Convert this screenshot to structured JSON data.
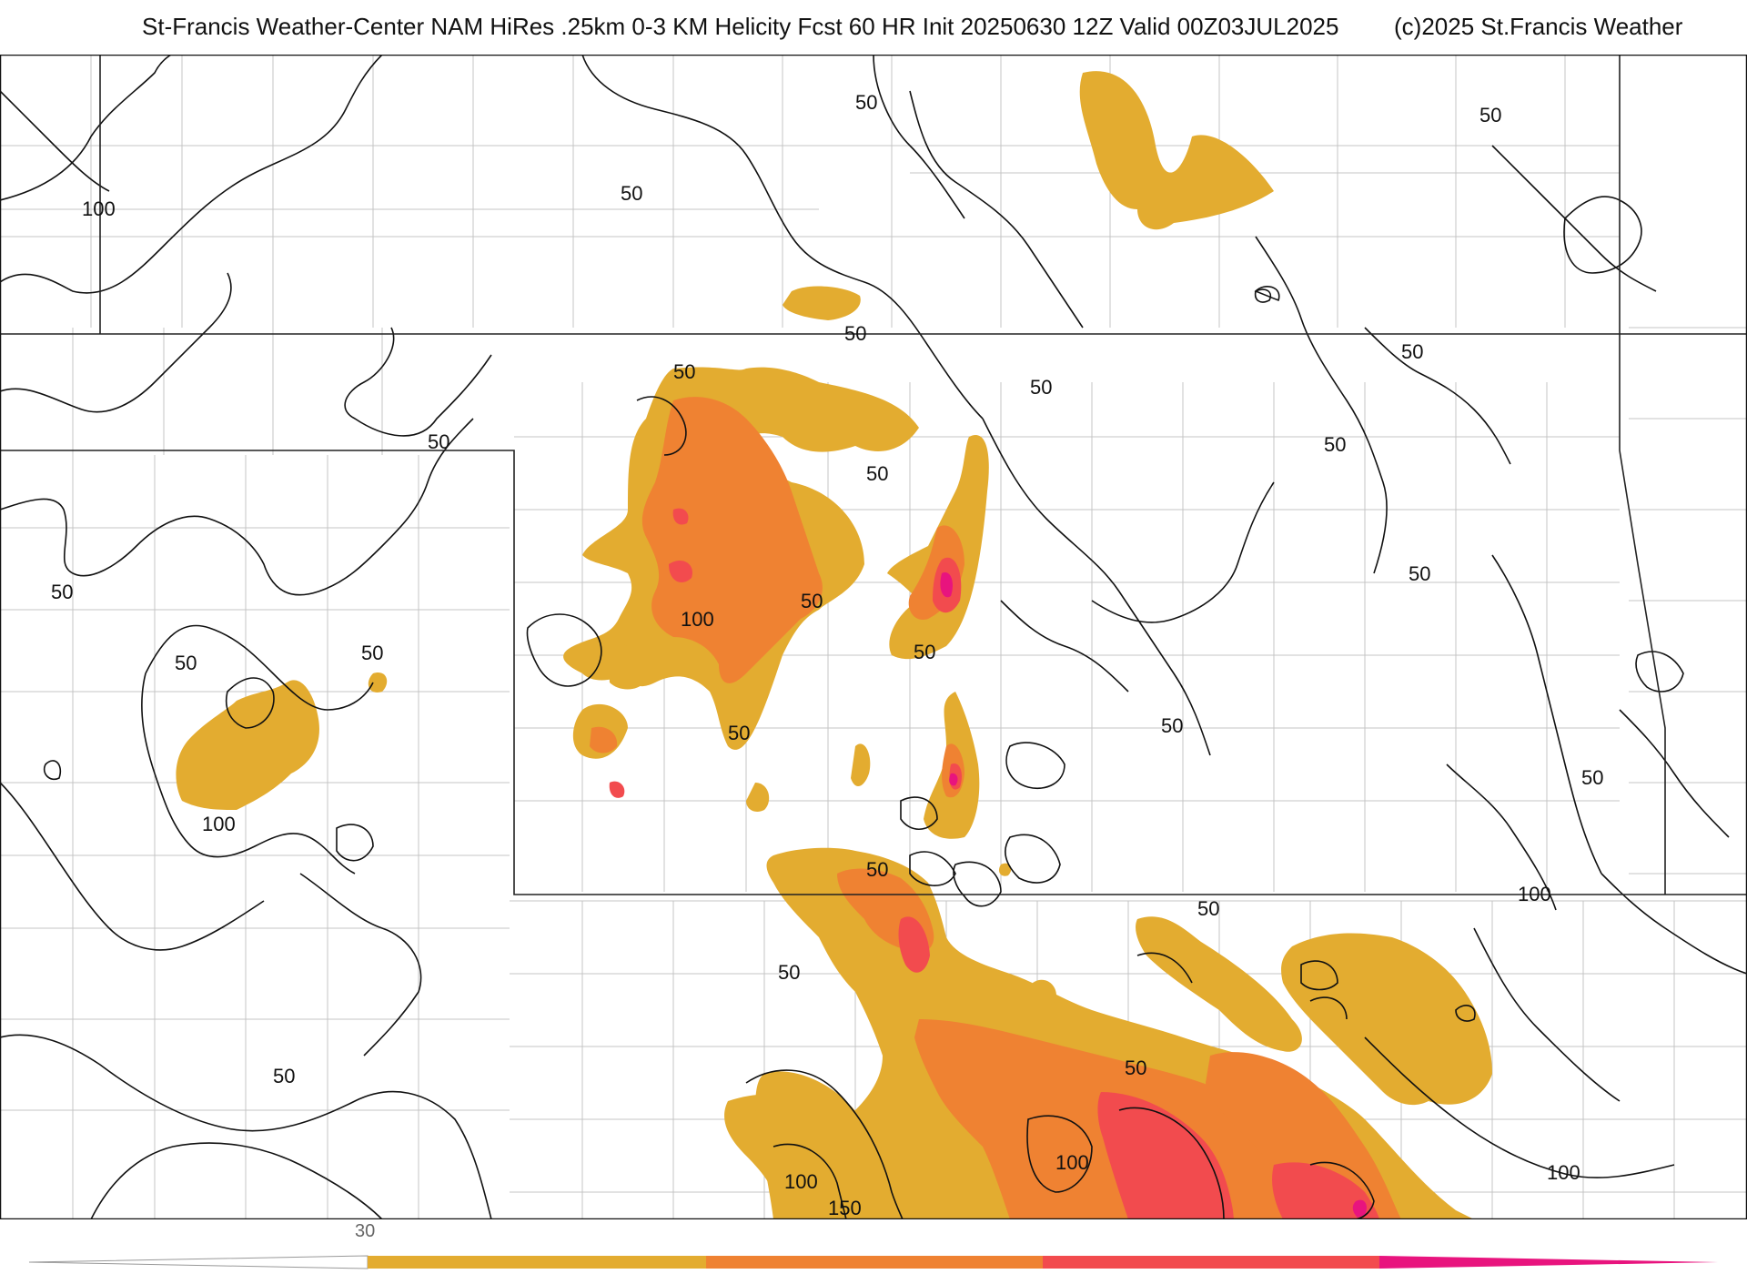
{
  "header": {
    "title": "St-Francis Weather-Center NAM HiRes .25km 0-3 KM Helicity Fcst 60 HR Init 20250630 12Z  Valid 00Z03JUL2025",
    "credit": "(c)2025 St.Francis Weather"
  },
  "map": {
    "field": "0-3 KM Helicity",
    "contour_labels": [
      "50",
      "100",
      "150"
    ],
    "fill_colors": {
      "level1": "#e3ac30",
      "level2": "#ef8232",
      "level3": "#f24b4e",
      "level4": "#e8147e",
      "contour": "#111111",
      "borders": "#222222",
      "counties": "#c4c4c4"
    }
  },
  "colorbar": {
    "tick_labels": [
      "30"
    ],
    "colors": [
      "#e3ac30",
      "#ef8232",
      "#f24b4e",
      "#e8147e"
    ]
  }
}
